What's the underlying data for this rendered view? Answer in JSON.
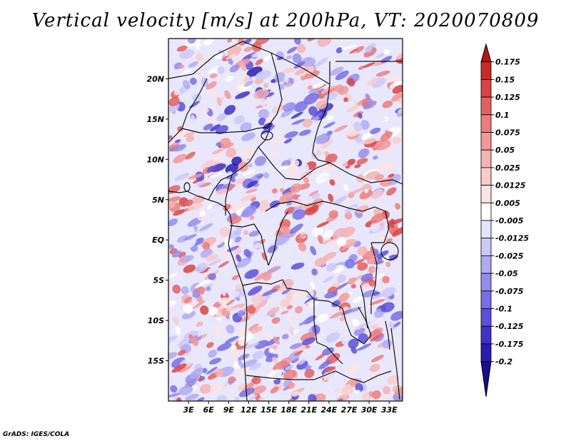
{
  "title": "Vertical velocity [m/s] at 200hPa, VT: 2020070809",
  "footer": "GrADS: IGES/COLA",
  "map": {
    "lon_range": [
      0,
      35
    ],
    "lat_range": [
      -20,
      25
    ],
    "lat_labels": [
      "20N",
      "15N",
      "10N",
      "5N",
      "EQ",
      "5S",
      "10S",
      "15S"
    ],
    "lat_values": [
      20,
      15,
      10,
      5,
      0,
      -5,
      -10,
      -15
    ],
    "lon_labels": [
      "3E",
      "6E",
      "9E",
      "12E",
      "15E",
      "18E",
      "21E",
      "24E",
      "27E",
      "30E",
      "33E"
    ],
    "lon_values": [
      3,
      6,
      9,
      12,
      15,
      18,
      21,
      24,
      27,
      30,
      33
    ]
  },
  "colorbar": {
    "labels": [
      "0.175",
      "0.15",
      "0.125",
      "0.1",
      "0.075",
      "0.05",
      "0.025",
      "0.0125",
      "0.005",
      "-0.005",
      "-0.0125",
      "-0.025",
      "-0.05",
      "-0.075",
      "-0.1",
      "-0.125",
      "-0.175",
      "-0.2"
    ],
    "colors": [
      "#b01818",
      "#c62a2a",
      "#d84444",
      "#e46060",
      "#ec7c7c",
      "#f29898",
      "#f6b2b2",
      "#f9cccc",
      "#fce4e4",
      "#ffffff",
      "#e6e4fc",
      "#ccc8f8",
      "#b0aaf2",
      "#948cec",
      "#786ee4",
      "#5c50d8",
      "#4032c6",
      "#2a1cac",
      "#1a0c8c"
    ]
  }
}
